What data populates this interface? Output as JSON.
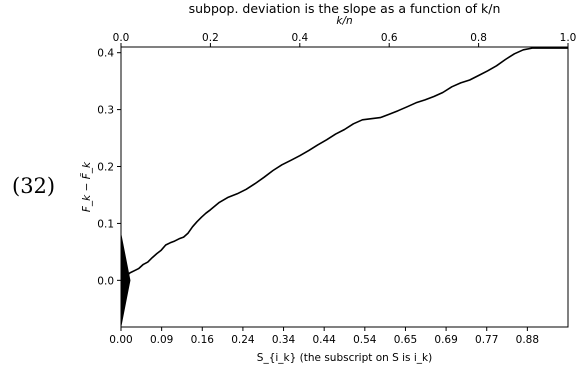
{
  "equation_label": "(32)",
  "chart_data": {
    "type": "line",
    "title": "subpop. deviation is the slope as a function of k/n",
    "xlabel": "S_{i_k} (the subscript on S is i_k)",
    "ylabel": "F_k − F̃_k",
    "top_xlabel": "k/n",
    "top_xticks": [
      "0.0",
      "0.2",
      "0.4",
      "0.6",
      "0.8",
      "1.0"
    ],
    "bottom_xticks": [
      "0.00",
      "0.09",
      "0.16",
      "0.24",
      "0.34",
      "0.44",
      "0.54",
      "0.65",
      "0.69",
      "0.77",
      "0.88"
    ],
    "yticks": [
      0.0,
      0.1,
      0.2,
      0.3,
      0.4
    ],
    "xlim": [
      0,
      1
    ],
    "ylim": [
      -0.082,
      0.41
    ],
    "triangle": {
      "x_tip": 0.02,
      "y_low": -0.08,
      "y_high": 0.08
    },
    "series": [
      {
        "x": [
          0.0,
          0.01,
          0.02,
          0.03,
          0.04,
          0.05,
          0.06,
          0.07,
          0.08,
          0.09,
          0.1,
          0.11,
          0.12,
          0.13,
          0.14,
          0.15,
          0.16,
          0.17,
          0.18,
          0.19,
          0.2,
          0.22,
          0.24,
          0.26,
          0.28,
          0.3,
          0.32,
          0.34,
          0.36,
          0.38,
          0.4,
          0.42,
          0.44,
          0.46,
          0.48,
          0.5,
          0.52,
          0.54,
          0.56,
          0.58,
          0.6,
          0.62,
          0.64,
          0.66,
          0.68,
          0.7,
          0.72,
          0.74,
          0.76,
          0.78,
          0.8,
          0.82,
          0.84,
          0.86,
          0.88,
          0.9,
          0.92,
          0.94,
          0.96,
          0.98,
          1.0
        ],
        "y": [
          0.0,
          0.006,
          0.013,
          0.017,
          0.021,
          0.028,
          0.032,
          0.04,
          0.047,
          0.053,
          0.062,
          0.066,
          0.069,
          0.073,
          0.076,
          0.083,
          0.094,
          0.103,
          0.111,
          0.118,
          0.124,
          0.137,
          0.146,
          0.152,
          0.16,
          0.17,
          0.181,
          0.193,
          0.203,
          0.211,
          0.219,
          0.228,
          0.238,
          0.247,
          0.257,
          0.265,
          0.275,
          0.282,
          0.284,
          0.286,
          0.292,
          0.298,
          0.305,
          0.312,
          0.317,
          0.323,
          0.33,
          0.34,
          0.347,
          0.352,
          0.36,
          0.368,
          0.377,
          0.388,
          0.398,
          0.405,
          0.408,
          0.408,
          0.408,
          0.408,
          0.408
        ]
      }
    ]
  }
}
